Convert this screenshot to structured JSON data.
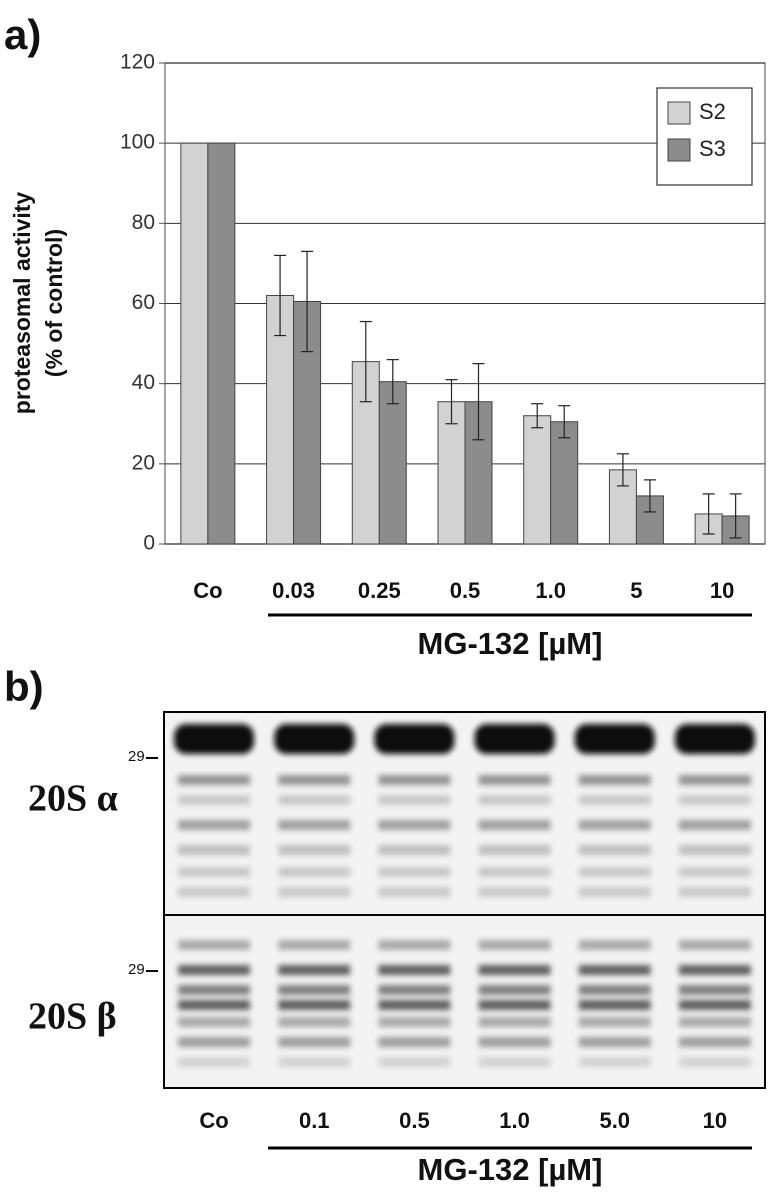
{
  "panel_a_label": "a)",
  "chart_data": {
    "type": "bar",
    "y_label_lines": [
      "proteasomal activity",
      "(% of control)"
    ],
    "categories": [
      "Co",
      "0.03",
      "0.25",
      "0.5",
      "1.0",
      "5",
      "10"
    ],
    "x_group_label": "MG-132 [µM]",
    "series": [
      {
        "name": "S2",
        "color": "#d2d2d2",
        "values": [
          100,
          62,
          45.5,
          35.5,
          32,
          18.5,
          7.5
        ],
        "errors": [
          null,
          10,
          10,
          5.5,
          3,
          4,
          5
        ]
      },
      {
        "name": "S3",
        "color": "#8c8c8c",
        "values": [
          100,
          60.5,
          40.5,
          35.5,
          30.5,
          12,
          7
        ],
        "errors": [
          null,
          12.5,
          5.5,
          9.5,
          4,
          4,
          5.5
        ]
      }
    ],
    "ylim": [
      0,
      120
    ],
    "yticks": [
      0,
      20,
      40,
      60,
      80,
      100,
      120
    ],
    "grid": true,
    "legend": "top-right"
  },
  "panel_b_label": "b)",
  "blot": {
    "rows": [
      "20S α",
      "20S β"
    ],
    "marker": "29",
    "lanes": [
      "Co",
      "0.1",
      "0.5",
      "1.0",
      "5.0",
      "10"
    ],
    "x_group_label": "MG-132 [µM]"
  }
}
